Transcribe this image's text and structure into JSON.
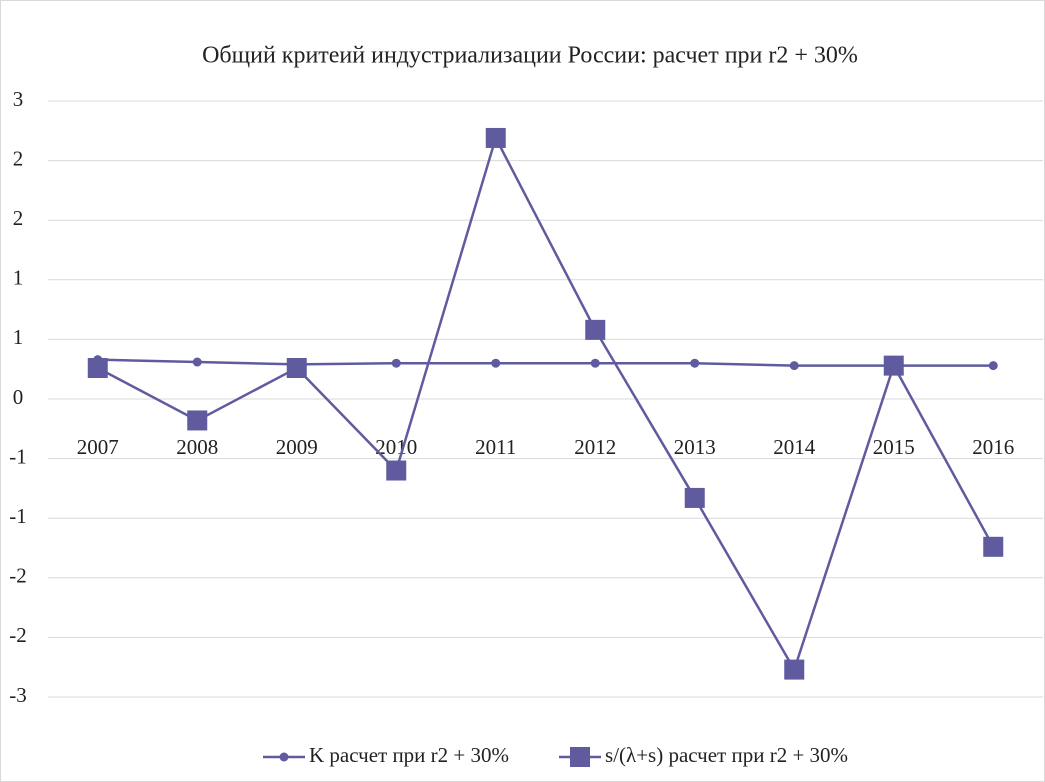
{
  "chart_data": {
    "type": "line",
    "title": "Общий критеий индустриализации России: расчет при r2 + 30%",
    "categories": [
      "2007",
      "2008",
      "2009",
      "2010",
      "2011",
      "2012",
      "2013",
      "2014",
      "2015",
      "2016"
    ],
    "series": [
      {
        "name": "K расчет при r2 + 30%",
        "color": "#5f5b9e",
        "marker": "circle",
        "values": [
          0.33,
          0.31,
          0.29,
          0.3,
          0.3,
          0.3,
          0.3,
          0.28,
          0.28,
          0.28
        ]
      },
      {
        "name": "s/(λ+s) расчет при r2 + 30%",
        "color": "#5f5b9e",
        "marker": "square",
        "values": [
          0.26,
          -0.18,
          0.26,
          -0.6,
          2.19,
          0.58,
          -0.83,
          -2.27,
          0.28,
          -1.24
        ]
      }
    ],
    "ylim": [
      -2.5,
      2.5
    ],
    "yticks": [
      {
        "value": 2.5,
        "label": "3"
      },
      {
        "value": 2,
        "label": "2"
      },
      {
        "value": 1.5,
        "label": "2"
      },
      {
        "value": 1,
        "label": "1"
      },
      {
        "value": 0.5,
        "label": "1"
      },
      0,
      {
        "value": -0.5,
        "label": "-1"
      },
      {
        "value": -1,
        "label": "-1"
      },
      {
        "value": -1.5,
        "label": "-2"
      },
      {
        "value": -2,
        "label": "-2"
      },
      {
        "value": -2.5,
        "label": "-3"
      }
    ],
    "grid": true,
    "legend": "bottom"
  }
}
